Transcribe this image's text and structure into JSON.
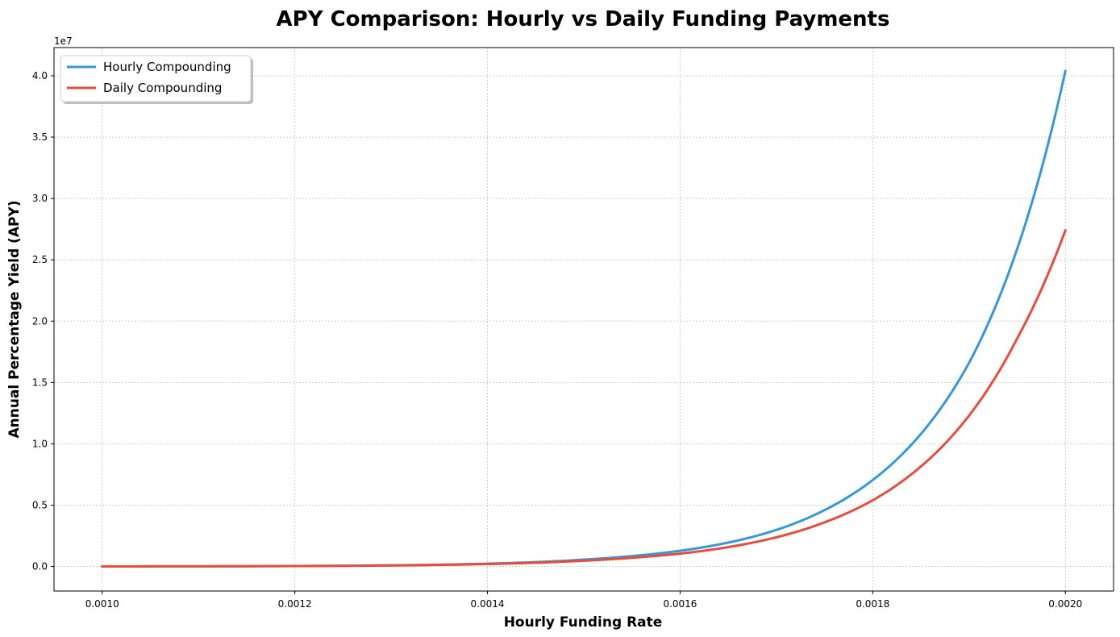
{
  "chart_data": {
    "type": "line",
    "title": "APY Comparison: Hourly vs Daily Funding Payments",
    "xlabel": "Hourly Funding Rate",
    "ylabel": "Annual Percentage Yield (APY)",
    "y_offset_label": "1e7",
    "xlim": [
      0.00095,
      0.00205
    ],
    "ylim": [
      -2000000,
      42300000
    ],
    "x_ticks": [
      0.001,
      0.0012,
      0.0014,
      0.0016,
      0.0018,
      0.002
    ],
    "x_tick_labels": [
      "0.0010",
      "0.0012",
      "0.0014",
      "0.0016",
      "0.0018",
      "0.0020"
    ],
    "y_ticks": [
      0,
      5000000,
      10000000,
      15000000,
      20000000,
      25000000,
      30000000,
      35000000,
      40000000
    ],
    "y_tick_labels": [
      "0.0",
      "0.5",
      "1.0",
      "1.5",
      "2.0",
      "2.5",
      "3.0",
      "3.5",
      "4.0"
    ],
    "grid": true,
    "legend_position": "top-left",
    "series": [
      {
        "name": "Hourly Compounding",
        "color": "#3498db",
        "x": [
          0.001,
          0.0011,
          0.0012,
          0.0013,
          0.0014,
          0.0015,
          0.00155,
          0.0016,
          0.00165,
          0.0017,
          0.00175,
          0.0018,
          0.00185,
          0.0019,
          0.00195,
          0.002
        ],
        "y": [
          6500,
          15000,
          40000,
          95000,
          230000,
          560000,
          850000,
          1280000,
          1950000,
          2980000,
          4600000,
          7050000,
          10800000,
          16600000,
          25900000,
          40400000
        ]
      },
      {
        "name": "Daily Compounding",
        "color": "#e74c3c",
        "x": [
          0.001,
          0.0011,
          0.0012,
          0.0013,
          0.0014,
          0.0015,
          0.00155,
          0.0016,
          0.00165,
          0.0017,
          0.00175,
          0.0018,
          0.00185,
          0.0019,
          0.00195,
          0.002
        ],
        "y": [
          6000,
          14000,
          36000,
          85000,
          200000,
          470000,
          710000,
          1050000,
          1580000,
          2380000,
          3600000,
          5400000,
          8150000,
          12300000,
          18600000,
          27400000
        ]
      }
    ]
  }
}
